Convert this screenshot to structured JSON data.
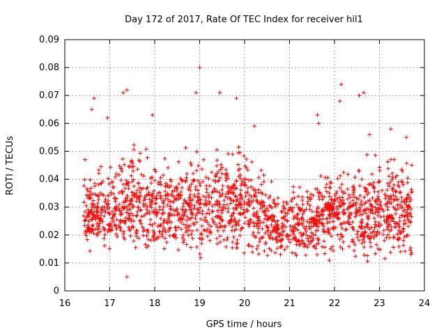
{
  "chart_data": {
    "type": "scatter",
    "title": "Day 172 of 2017, Rate Of TEC Index for receiver hil1",
    "xlabel": "GPS time / hours",
    "ylabel": "ROTI / TECUs",
    "xlim": [
      16,
      24
    ],
    "ylim": [
      0,
      0.09
    ],
    "xticks": [
      "16",
      "17",
      "18",
      "19",
      "20",
      "21",
      "22",
      "23",
      "24"
    ],
    "yticks": [
      "0",
      "0.01",
      "0.02",
      "0.03",
      "0.04",
      "0.05",
      "0.06",
      "0.07",
      "0.08",
      "0.09"
    ],
    "grid": true,
    "marker": "plus",
    "color": "#ff0000",
    "series": [
      {
        "name": "ROTI",
        "x_range": [
          16.42,
          23.72
        ],
        "sample_points": [
          [
            16.45,
            0.047
          ],
          [
            16.6,
            0.065
          ],
          [
            16.65,
            0.069
          ],
          [
            16.95,
            0.062
          ],
          [
            17.3,
            0.071
          ],
          [
            17.38,
            0.072
          ],
          [
            17.38,
            0.005
          ],
          [
            17.95,
            0.063
          ],
          [
            18.92,
            0.071
          ],
          [
            19.0,
            0.08
          ],
          [
            19.45,
            0.071
          ],
          [
            19.82,
            0.069
          ],
          [
            20.22,
            0.059
          ],
          [
            21.62,
            0.063
          ],
          [
            21.65,
            0.06
          ],
          [
            22.12,
            0.068
          ],
          [
            22.15,
            0.074
          ],
          [
            22.55,
            0.07
          ],
          [
            22.65,
            0.071
          ],
          [
            22.78,
            0.056
          ],
          [
            23.25,
            0.058
          ],
          [
            23.6,
            0.055
          ],
          [
            23.72,
            0.045
          ]
        ],
        "envelope": [
          [
            16.5,
            0.013,
            0.04
          ],
          [
            17.0,
            0.01,
            0.045
          ],
          [
            17.5,
            0.012,
            0.05
          ],
          [
            18.0,
            0.012,
            0.047
          ],
          [
            18.5,
            0.011,
            0.045
          ],
          [
            18.8,
            0.008,
            0.05
          ],
          [
            19.2,
            0.013,
            0.048
          ],
          [
            19.6,
            0.012,
            0.05
          ],
          [
            20.0,
            0.011,
            0.05
          ],
          [
            20.4,
            0.01,
            0.042
          ],
          [
            20.8,
            0.009,
            0.035
          ],
          [
            21.2,
            0.01,
            0.037
          ],
          [
            21.6,
            0.009,
            0.042
          ],
          [
            22.0,
            0.01,
            0.045
          ],
          [
            22.4,
            0.009,
            0.047
          ],
          [
            22.8,
            0.008,
            0.045
          ],
          [
            23.2,
            0.009,
            0.048
          ],
          [
            23.6,
            0.01,
            0.045
          ]
        ]
      }
    ]
  }
}
